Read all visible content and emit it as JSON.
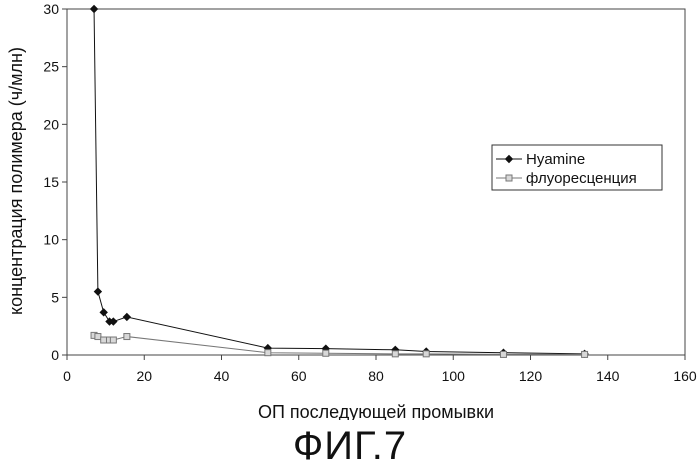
{
  "caption": "ФИГ.7",
  "chart_data": {
    "type": "line",
    "xlabel": "ОП последующей промывки",
    "ylabel": "концентрация полимера (ч/млн)",
    "xlim": [
      0,
      160
    ],
    "ylim": [
      0,
      30
    ],
    "xticks": [
      0,
      20,
      40,
      60,
      80,
      100,
      120,
      140,
      160
    ],
    "yticks": [
      0,
      5,
      10,
      15,
      20,
      25,
      30
    ],
    "grid": false,
    "legend_position": "right",
    "series": [
      {
        "name": "Hyamine",
        "marker": "diamond",
        "color": "#111111",
        "x": [
          7,
          8,
          9.5,
          11,
          12,
          15.5,
          52,
          67,
          85,
          93,
          113,
          134
        ],
        "y": [
          30,
          5.5,
          3.7,
          2.9,
          2.9,
          3.3,
          0.6,
          0.55,
          0.45,
          0.3,
          0.2,
          0.1
        ]
      },
      {
        "name": "флуоресценция",
        "marker": "square",
        "color": "#777777",
        "x": [
          7,
          8,
          9.5,
          11,
          12,
          15.5,
          52,
          67,
          85,
          93,
          113,
          134
        ],
        "y": [
          1.7,
          1.6,
          1.3,
          1.3,
          1.3,
          1.6,
          0.2,
          0.15,
          0.1,
          0.1,
          0.05,
          0.05
        ]
      }
    ]
  }
}
